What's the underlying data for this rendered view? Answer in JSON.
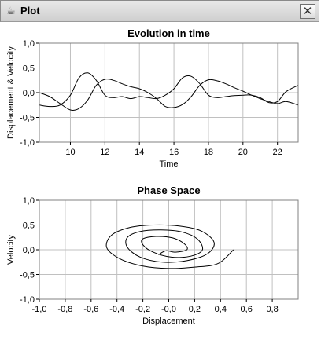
{
  "window": {
    "title": "Plot",
    "icon": "coffee-cup-icon",
    "close_icon": "close-icon"
  },
  "chart_data": [
    {
      "type": "line",
      "title": "Evolution in time",
      "xlabel": "Time",
      "ylabel": "Displacement & Velocity",
      "xlim": [
        8.2,
        23.2
      ],
      "ylim": [
        -1.0,
        1.0
      ],
      "xticks": [
        10,
        12,
        14,
        16,
        18,
        20,
        22
      ],
      "xtick_labels": [
        "10",
        "12",
        "14",
        "16",
        "18",
        "20",
        "22"
      ],
      "yticks": [
        -1.0,
        -0.5,
        0.0,
        0.5,
        1.0
      ],
      "ytick_labels": [
        "-1,0",
        "-0,5",
        "0,0",
        "0,5",
        "1,0"
      ],
      "grid": true,
      "series": [
        {
          "color": "#000000",
          "x": [
            8.2,
            8.8,
            9.4,
            10.0,
            10.5,
            11.0,
            11.5,
            12.0,
            12.5,
            13.0,
            13.5,
            14.0,
            14.5,
            15.0,
            15.5,
            16.0,
            16.5,
            17.0,
            17.5,
            18.0,
            18.5,
            19.0,
            19.5,
            20.0,
            20.5,
            21.0,
            21.5,
            22.0,
            22.5,
            23.2
          ],
          "y": [
            0.0,
            -0.08,
            -0.22,
            -0.35,
            -0.32,
            -0.15,
            0.15,
            0.27,
            0.25,
            0.18,
            0.12,
            0.08,
            0.0,
            -0.12,
            -0.28,
            -0.3,
            -0.24,
            -0.08,
            0.15,
            0.26,
            0.24,
            0.18,
            0.1,
            0.03,
            -0.05,
            -0.12,
            -0.18,
            -0.22,
            -0.18,
            -0.25
          ]
        },
        {
          "color": "#000000",
          "x": [
            8.2,
            8.8,
            9.4,
            10.0,
            10.5,
            11.0,
            11.5,
            12.0,
            12.5,
            13.0,
            13.5,
            14.0,
            14.5,
            15.0,
            15.5,
            16.0,
            16.5,
            17.0,
            17.5,
            18.0,
            18.5,
            19.0,
            19.5,
            20.0,
            20.5,
            21.0,
            21.5,
            22.0,
            22.5,
            23.2
          ],
          "y": [
            -0.25,
            -0.28,
            -0.25,
            -0.05,
            0.3,
            0.4,
            0.25,
            -0.05,
            -0.1,
            -0.08,
            -0.12,
            -0.08,
            -0.1,
            -0.12,
            -0.05,
            0.08,
            0.3,
            0.33,
            0.18,
            -0.05,
            -0.1,
            -0.08,
            -0.06,
            -0.05,
            -0.05,
            -0.1,
            -0.2,
            -0.18,
            0.02,
            0.15
          ]
        }
      ]
    },
    {
      "type": "line",
      "title": "Phase Space",
      "xlabel": "Displacement",
      "ylabel": "Velocity",
      "xlim": [
        -1.0,
        1.0
      ],
      "ylim": [
        -1.0,
        1.0
      ],
      "xticks": [
        -1.0,
        -0.8,
        -0.6,
        -0.4,
        -0.2,
        0.0,
        0.2,
        0.4,
        0.6,
        0.8
      ],
      "xtick_labels": [
        "-1,0",
        "-0,8",
        "-0,6",
        "-0,4",
        "-0,2",
        "-0,0",
        "0,2",
        "0,4",
        "0,6",
        "0,8"
      ],
      "yticks": [
        -1.0,
        -0.5,
        0.0,
        0.5,
        1.0
      ],
      "ytick_labels": [
        "-1,0",
        "-0,5",
        "0,0",
        "0,5",
        "1,0"
      ],
      "grid": true,
      "series": [
        {
          "color": "#000000",
          "x": [
            0.5,
            0.38,
            0.2,
            0.0,
            -0.2,
            -0.38,
            -0.48,
            -0.44,
            -0.3,
            -0.12,
            0.08,
            0.25,
            0.35,
            0.3,
            0.14,
            -0.05,
            -0.22,
            -0.32,
            -0.32,
            -0.22,
            -0.06,
            0.1,
            0.22,
            0.26,
            0.17,
            0.02,
            -0.12,
            -0.2,
            -0.2,
            -0.1,
            0.03,
            0.12,
            0.14,
            0.05,
            -0.02,
            -0.08
          ],
          "y": [
            0.0,
            -0.28,
            -0.35,
            -0.38,
            -0.33,
            -0.18,
            0.05,
            0.3,
            0.45,
            0.5,
            0.48,
            0.38,
            0.15,
            -0.08,
            -0.22,
            -0.25,
            -0.15,
            0.05,
            0.25,
            0.37,
            0.4,
            0.36,
            0.22,
            0.0,
            -0.13,
            -0.15,
            -0.05,
            0.1,
            0.22,
            0.27,
            0.24,
            0.12,
            0.0,
            -0.05,
            -0.02,
            -0.1
          ]
        }
      ]
    }
  ]
}
